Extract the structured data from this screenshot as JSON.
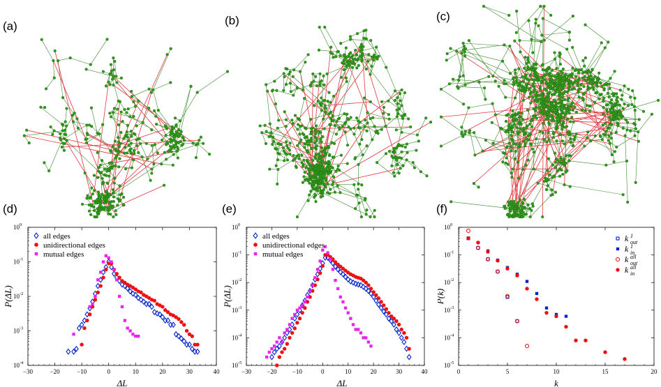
{
  "figure": {
    "panel_labels": [
      "(a)",
      "(b)",
      "(c)",
      "(d)",
      "(e)",
      "(f)"
    ],
    "networks": [
      {
        "panel": "(a)",
        "description": "sparse network"
      },
      {
        "panel": "(b)",
        "description": "medium network"
      },
      {
        "panel": "(c)",
        "description": "dense network"
      }
    ],
    "colors": {
      "node": "#2e9a1a",
      "node_edge": "#1f6b10",
      "link": "#e0383e",
      "blue": "#0022cc",
      "red": "#ee1111",
      "magenta": "#ee22ee"
    }
  },
  "chart_data": [
    {
      "type": "scatter",
      "panel": "(d)",
      "xlabel": "ΔL",
      "ylabel": "P(ΔL)",
      "xlim": [
        -30,
        40
      ],
      "ylim_log10": [
        -4,
        0
      ],
      "xticks": [
        "−30",
        "−20",
        "−10",
        "0",
        "10",
        "20",
        "30",
        "40"
      ],
      "yticks": [
        "10",
        "10",
        "10",
        "10",
        "10"
      ],
      "ytick_exponents": [
        "-4",
        "-3",
        "-2",
        "-1",
        "0"
      ],
      "legend": [
        "all edges",
        "unidirectional edges",
        "mutual edges"
      ],
      "series": [
        {
          "name": "all edges",
          "marker": "diamond-open",
          "color": "#0022cc",
          "x": [
            -15,
            -13,
            -12,
            -11,
            -10,
            -9,
            -8,
            -7,
            -6,
            -5,
            -4,
            -3,
            -2,
            -1,
            0,
            1,
            2,
            3,
            4,
            5,
            6,
            7,
            8,
            9,
            10,
            11,
            12,
            13,
            14,
            15,
            16,
            17,
            18,
            19,
            20,
            21,
            22,
            23,
            24,
            25,
            26,
            27,
            28,
            29,
            30,
            31,
            32,
            33
          ],
          "y": [
            0.00025,
            0.00025,
            0.0003,
            0.0012,
            0.0015,
            0.002,
            0.003,
            0.0045,
            0.007,
            0.012,
            0.02,
            0.03,
            0.05,
            0.07,
            0.1,
            0.07,
            0.045,
            0.035,
            0.028,
            0.022,
            0.02,
            0.017,
            0.014,
            0.012,
            0.011,
            0.009,
            0.008,
            0.007,
            0.006,
            0.006,
            0.005,
            0.0035,
            0.0032,
            0.003,
            0.0025,
            0.002,
            0.002,
            0.0015,
            0.0015,
            0.0008,
            0.0007,
            0.0006,
            0.0005,
            0.0004,
            0.0004,
            0.0003,
            0.00025,
            0.00025
          ]
        },
        {
          "name": "unidirectional edges",
          "marker": "circle",
          "color": "#ee1111",
          "x": [
            -10,
            -9,
            -8,
            -7,
            -6,
            -5,
            -4,
            -3,
            -2,
            -1,
            0,
            1,
            2,
            3,
            4,
            5,
            6,
            7,
            8,
            9,
            10,
            11,
            12,
            13,
            14,
            15,
            16,
            17,
            18,
            19,
            20,
            21,
            22,
            23,
            24,
            25,
            26,
            27,
            28,
            29,
            30,
            31,
            32,
            33
          ],
          "y": [
            0.0004,
            0.0012,
            0.002,
            0.003,
            0.005,
            0.008,
            0.013,
            0.02,
            0.035,
            0.06,
            0.09,
            0.09,
            0.06,
            0.045,
            0.035,
            0.028,
            0.025,
            0.022,
            0.02,
            0.018,
            0.016,
            0.014,
            0.013,
            0.011,
            0.01,
            0.009,
            0.008,
            0.0075,
            0.006,
            0.0055,
            0.005,
            0.004,
            0.0035,
            0.003,
            0.0028,
            0.0025,
            0.0022,
            0.0018,
            0.0015,
            0.001,
            0.0008,
            0.0007,
            0.0004,
            0.0004
          ]
        },
        {
          "name": "mutual edges",
          "marker": "square",
          "color": "#ee22ee",
          "x": [
            -13,
            -7,
            -6,
            -5,
            -4,
            -3,
            -2,
            -1,
            0,
            1,
            2,
            3,
            4,
            5,
            6,
            7,
            8,
            9,
            10,
            11
          ],
          "y": [
            0.0008,
            0.005,
            0.006,
            0.01,
            0.03,
            0.05,
            0.1,
            0.15,
            0.13,
            0.1,
            0.06,
            0.03,
            0.01,
            0.005,
            0.002,
            0.0012,
            0.001,
            0.0008,
            0.0007,
            0.0007
          ]
        }
      ]
    },
    {
      "type": "scatter",
      "panel": "(e)",
      "xlabel": "ΔL",
      "ylabel": "P(ΔL)",
      "xlim": [
        -30,
        40
      ],
      "ylim_log10": [
        -5,
        0
      ],
      "xticks": [
        "−30",
        "−20",
        "−10",
        "0",
        "10",
        "20",
        "30",
        "40"
      ],
      "yticks": [
        "10",
        "10",
        "10",
        "10",
        "10",
        "10"
      ],
      "ytick_exponents": [
        "-5",
        "-4",
        "-3",
        "-2",
        "-1",
        "0"
      ],
      "legend": [
        "all edges",
        "unidirectional edges",
        "mutual edges"
      ],
      "series": [
        {
          "name": "all edges",
          "marker": "diamond-open",
          "color": "#0022cc",
          "x": [
            -20,
            -19,
            -18,
            -17,
            -16,
            -15,
            -14,
            -13,
            -12,
            -11,
            -10,
            -9,
            -8,
            -7,
            -6,
            -5,
            -4,
            -3,
            -2,
            -1,
            0,
            1,
            2,
            3,
            4,
            5,
            6,
            7,
            8,
            9,
            10,
            11,
            12,
            13,
            14,
            15,
            16,
            17,
            18,
            19,
            20,
            21,
            22,
            23,
            24,
            25,
            26,
            27,
            28,
            29,
            30,
            31,
            32,
            33,
            34
          ],
          "y": [
            2e-05,
            3e-05,
            4e-05,
            5e-05,
            7e-05,
            0.0001,
            0.00015,
            0.0002,
            0.0003,
            0.0005,
            0.0007,
            0.001,
            0.0015,
            0.0022,
            0.0035,
            0.005,
            0.008,
            0.013,
            0.02,
            0.032,
            0.05,
            0.08,
            0.08,
            0.065,
            0.05,
            0.038,
            0.03,
            0.024,
            0.02,
            0.016,
            0.013,
            0.011,
            0.01,
            0.009,
            0.0085,
            0.008,
            0.007,
            0.006,
            0.005,
            0.004,
            0.003,
            0.0022,
            0.0016,
            0.0012,
            0.0009,
            0.0007,
            0.0005,
            0.0004,
            0.0003,
            0.0002,
            0.00015,
            0.0001,
            7e-05,
            4e-05,
            2e-05
          ]
        },
        {
          "name": "unidirectional edges",
          "marker": "circle",
          "color": "#ee1111",
          "x": [
            -18,
            -17,
            -16,
            -15,
            -14,
            -13,
            -12,
            -11,
            -10,
            -9,
            -8,
            -7,
            -6,
            -5,
            -4,
            -3,
            -2,
            -1,
            0,
            1,
            2,
            3,
            4,
            5,
            6,
            7,
            8,
            9,
            10,
            11,
            12,
            13,
            14,
            15,
            16,
            17,
            18,
            19,
            20,
            21,
            22,
            23,
            24,
            25,
            26,
            27,
            28,
            29,
            30,
            31,
            32,
            33,
            34
          ],
          "y": [
            1e-05,
            2e-05,
            3e-05,
            4e-05,
            6e-05,
            0.0001,
            0.00015,
            0.00022,
            0.00035,
            0.0005,
            0.0008,
            0.0012,
            0.002,
            0.003,
            0.005,
            0.008,
            0.013,
            0.022,
            0.04,
            0.1,
            0.1,
            0.085,
            0.07,
            0.055,
            0.045,
            0.038,
            0.032,
            0.027,
            0.023,
            0.02,
            0.018,
            0.016,
            0.015,
            0.014,
            0.012,
            0.01,
            0.008,
            0.006,
            0.0045,
            0.0035,
            0.0027,
            0.002,
            0.0015,
            0.0011,
            0.0008,
            0.0006,
            0.0005,
            0.0004,
            0.0003,
            0.0002,
            0.00015,
            0.0001,
            4e-05
          ]
        },
        {
          "name": "mutual edges",
          "marker": "square",
          "color": "#ee22ee",
          "x": [
            -22,
            -21,
            -20,
            -19,
            -18,
            -17,
            -16,
            -15,
            -14,
            -13,
            -12,
            -11,
            -10,
            -9,
            -8,
            -7,
            -6,
            -5,
            -4,
            -3,
            -2,
            -1,
            0,
            1,
            2,
            3,
            4,
            5,
            6,
            7,
            8,
            9,
            10,
            11,
            12,
            13,
            14,
            15,
            16,
            17,
            18,
            19
          ],
          "y": [
            2e-05,
            3e-05,
            4e-05,
            5e-05,
            7e-05,
            0.0001,
            7e-05,
            0.00015,
            0.0002,
            0.0003,
            0.0005,
            0.0007,
            0.001,
            0.0012,
            0.0015,
            0.002,
            0.003,
            0.005,
            0.008,
            0.015,
            0.03,
            0.06,
            0.15,
            0.2,
            0.12,
            0.07,
            0.03,
            0.012,
            0.006,
            0.003,
            0.002,
            0.0012,
            0.0008,
            0.0005,
            0.0003,
            0.0002,
            0.0002,
            0.00015,
            0.0001,
            0.0001,
            7e-05,
            5e-05
          ]
        }
      ]
    },
    {
      "type": "scatter",
      "panel": "(f)",
      "xlabel": "k",
      "ylabel": "P(k)",
      "xlim": [
        0,
        20
      ],
      "ylim_log10": [
        -5,
        0
      ],
      "xticks": [
        "0",
        "5",
        "10",
        "15",
        "20"
      ],
      "yticks": [
        "10",
        "10",
        "10",
        "10",
        "10",
        "10"
      ],
      "ytick_exponents": [
        "-5",
        "-4",
        "-3",
        "-2",
        "-1",
        "0"
      ],
      "legend_base": [
        "k",
        "k",
        "k",
        "k"
      ],
      "legend_sup": [
        "1",
        "1",
        "all",
        "all"
      ],
      "legend_sub": [
        "out",
        "in",
        "out",
        "in"
      ],
      "series": [
        {
          "name": "k_out^1",
          "marker": "square-open",
          "color": "#0022cc",
          "x": [
            1,
            2,
            3,
            4,
            5,
            6
          ],
          "y": [
            0.4,
            0.18,
            0.07,
            0.025,
            0.003,
            0.0004
          ]
        },
        {
          "name": "k_in^1",
          "marker": "square",
          "color": "#0022cc",
          "x": [
            1,
            2,
            3,
            4,
            5,
            6,
            7,
            8,
            9,
            10,
            11
          ],
          "y": [
            0.4,
            0.28,
            0.14,
            0.065,
            0.035,
            0.02,
            0.011,
            0.004,
            0.0012,
            0.0007,
            0.0006
          ]
        },
        {
          "name": "k_out^all",
          "marker": "circle-open",
          "color": "#ee1111",
          "x": [
            1,
            2,
            3,
            4,
            5,
            6,
            7
          ],
          "y": [
            0.75,
            0.18,
            0.07,
            0.025,
            0.0032,
            0.0004,
            5e-05
          ]
        },
        {
          "name": "k_in^all",
          "marker": "circle",
          "color": "#ee1111",
          "x": [
            1,
            2,
            3,
            4,
            5,
            6,
            7,
            8,
            9,
            10,
            11,
            12,
            13,
            15,
            17
          ],
          "y": [
            0.4,
            0.28,
            0.13,
            0.062,
            0.032,
            0.018,
            0.006,
            0.0025,
            0.0008,
            0.0006,
            0.00025,
            8e-05,
            8e-05,
            3e-05,
            1.7e-05
          ]
        }
      ]
    }
  ]
}
